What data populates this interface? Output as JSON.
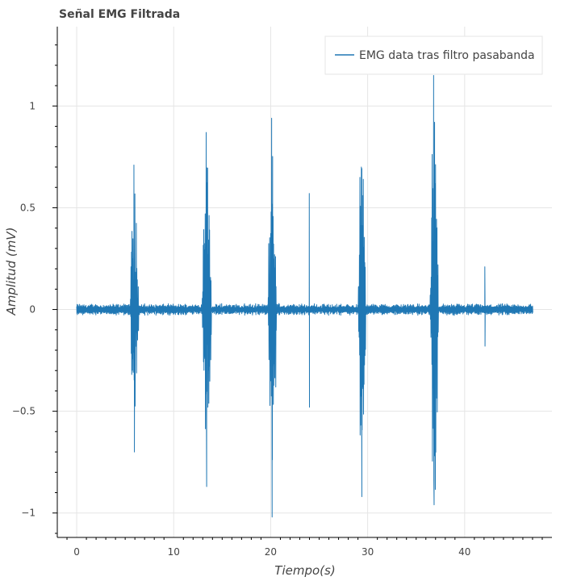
{
  "chart_data": {
    "type": "line",
    "title": "Señal EMG Filtrada",
    "xlabel": "Tiempo(s)",
    "ylabel": "Amplitud (mV)",
    "xlim": [
      -2,
      49
    ],
    "ylim": [
      -1.12,
      1.39
    ],
    "x_ticks": [
      0,
      10,
      20,
      30,
      40
    ],
    "x_tick_labels": [
      "0",
      "10",
      "20",
      "30",
      "40"
    ],
    "y_ticks": [
      -1,
      -0.5,
      0,
      0.5,
      1
    ],
    "y_tick_labels": [
      "−1",
      "−0.5",
      "0",
      "0.5",
      "1"
    ],
    "grid": true,
    "legend_position": "top-right",
    "baseline_noise_amplitude": 0.02,
    "series": [
      {
        "name": "EMG data tras filtro pasabanda",
        "color": "#1f77b4",
        "x_range": [
          0,
          47
        ],
        "bursts": [
          {
            "start": 5.5,
            "end": 6.4,
            "max": 0.71,
            "min": -0.7
          },
          {
            "start": 12.9,
            "end": 13.9,
            "max": 0.87,
            "min": -0.87
          },
          {
            "start": 19.7,
            "end": 20.6,
            "max": 0.94,
            "min": -1.02
          },
          {
            "start": 29.0,
            "end": 29.8,
            "max": 0.7,
            "min": -0.92
          },
          {
            "start": 36.4,
            "end": 37.3,
            "max": 1.15,
            "min": -0.96
          }
        ],
        "spikes": [
          {
            "x": 24.0,
            "max": 0.57,
            "min": -0.48
          },
          {
            "x": 42.1,
            "max": 0.21,
            "min": -0.18
          }
        ]
      }
    ]
  }
}
